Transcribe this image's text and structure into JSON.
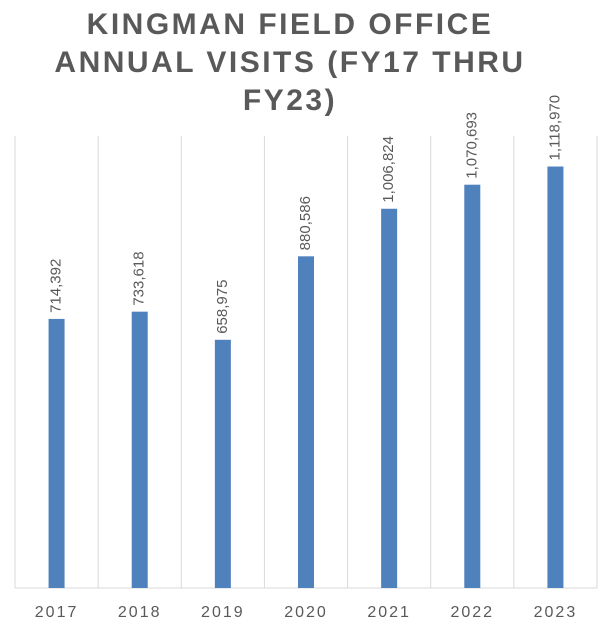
{
  "chart_data": {
    "type": "bar",
    "title": "KINGMAN FIELD OFFICE ANNUAL VISITS (FY17 THRU FY23)",
    "categories": [
      "2017",
      "2018",
      "2019",
      "2020",
      "2021",
      "2022",
      "2023"
    ],
    "values": [
      714392,
      733618,
      658975,
      880586,
      1006824,
      1070693,
      1118970
    ],
    "value_labels": [
      "714,392",
      "733,618",
      "658,975",
      "880,586",
      "1,006,824",
      "1,070,693",
      "1,118,970"
    ],
    "color": "#4f81bd",
    "ylim": [
      0,
      1200000
    ]
  }
}
